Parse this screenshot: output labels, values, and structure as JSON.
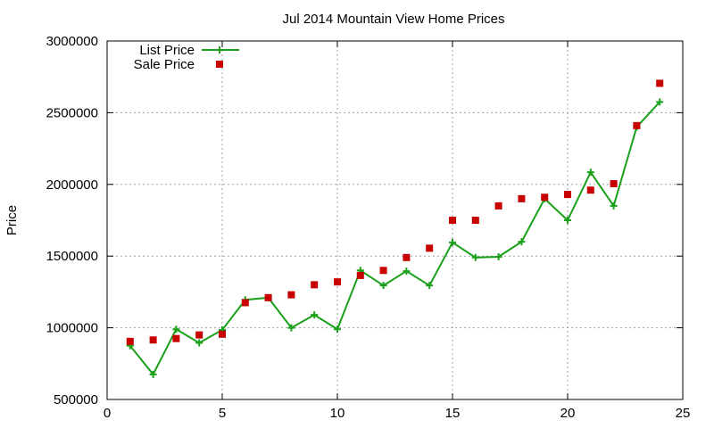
{
  "chart_data": {
    "type": "line",
    "title": "Jul 2014 Mountain View Home Prices",
    "xlabel": "",
    "ylabel": "Price",
    "xlim": [
      0,
      25
    ],
    "ylim": [
      500000,
      3000000
    ],
    "xticks": [
      0,
      5,
      10,
      15,
      20,
      25
    ],
    "yticks": [
      500000,
      1000000,
      1500000,
      2000000,
      2500000,
      3000000
    ],
    "grid": true,
    "legend_position": "top-left",
    "series": [
      {
        "name": "List Price",
        "type": "line",
        "color": "#1aa01a",
        "marker": "plus",
        "x": [
          1,
          2,
          3,
          4,
          5,
          6,
          7,
          8,
          9,
          10,
          11,
          12,
          13,
          14,
          15,
          16,
          17,
          18,
          19,
          20,
          21,
          22,
          23,
          24
        ],
        "values": [
          875000,
          675000,
          990000,
          895000,
          985000,
          1195000,
          1210000,
          1000000,
          1090000,
          990000,
          1400000,
          1295000,
          1395000,
          1295000,
          1595000,
          1490000,
          1495000,
          1600000,
          1900000,
          1750000,
          2085000,
          1850000,
          2400000,
          2575000
        ]
      },
      {
        "name": "Sale Price",
        "type": "scatter",
        "color": "#c80000",
        "marker": "square",
        "x": [
          1,
          2,
          3,
          4,
          5,
          6,
          7,
          8,
          9,
          10,
          11,
          12,
          13,
          14,
          15,
          16,
          17,
          18,
          19,
          20,
          21,
          22,
          23,
          24
        ],
        "values": [
          905000,
          915000,
          925000,
          950000,
          955000,
          1175000,
          1210000,
          1230000,
          1300000,
          1320000,
          1365000,
          1400000,
          1490000,
          1555000,
          1750000,
          1750000,
          1850000,
          1900000,
          1910000,
          1930000,
          1960000,
          2005000,
          2410000,
          2705000
        ]
      }
    ]
  }
}
